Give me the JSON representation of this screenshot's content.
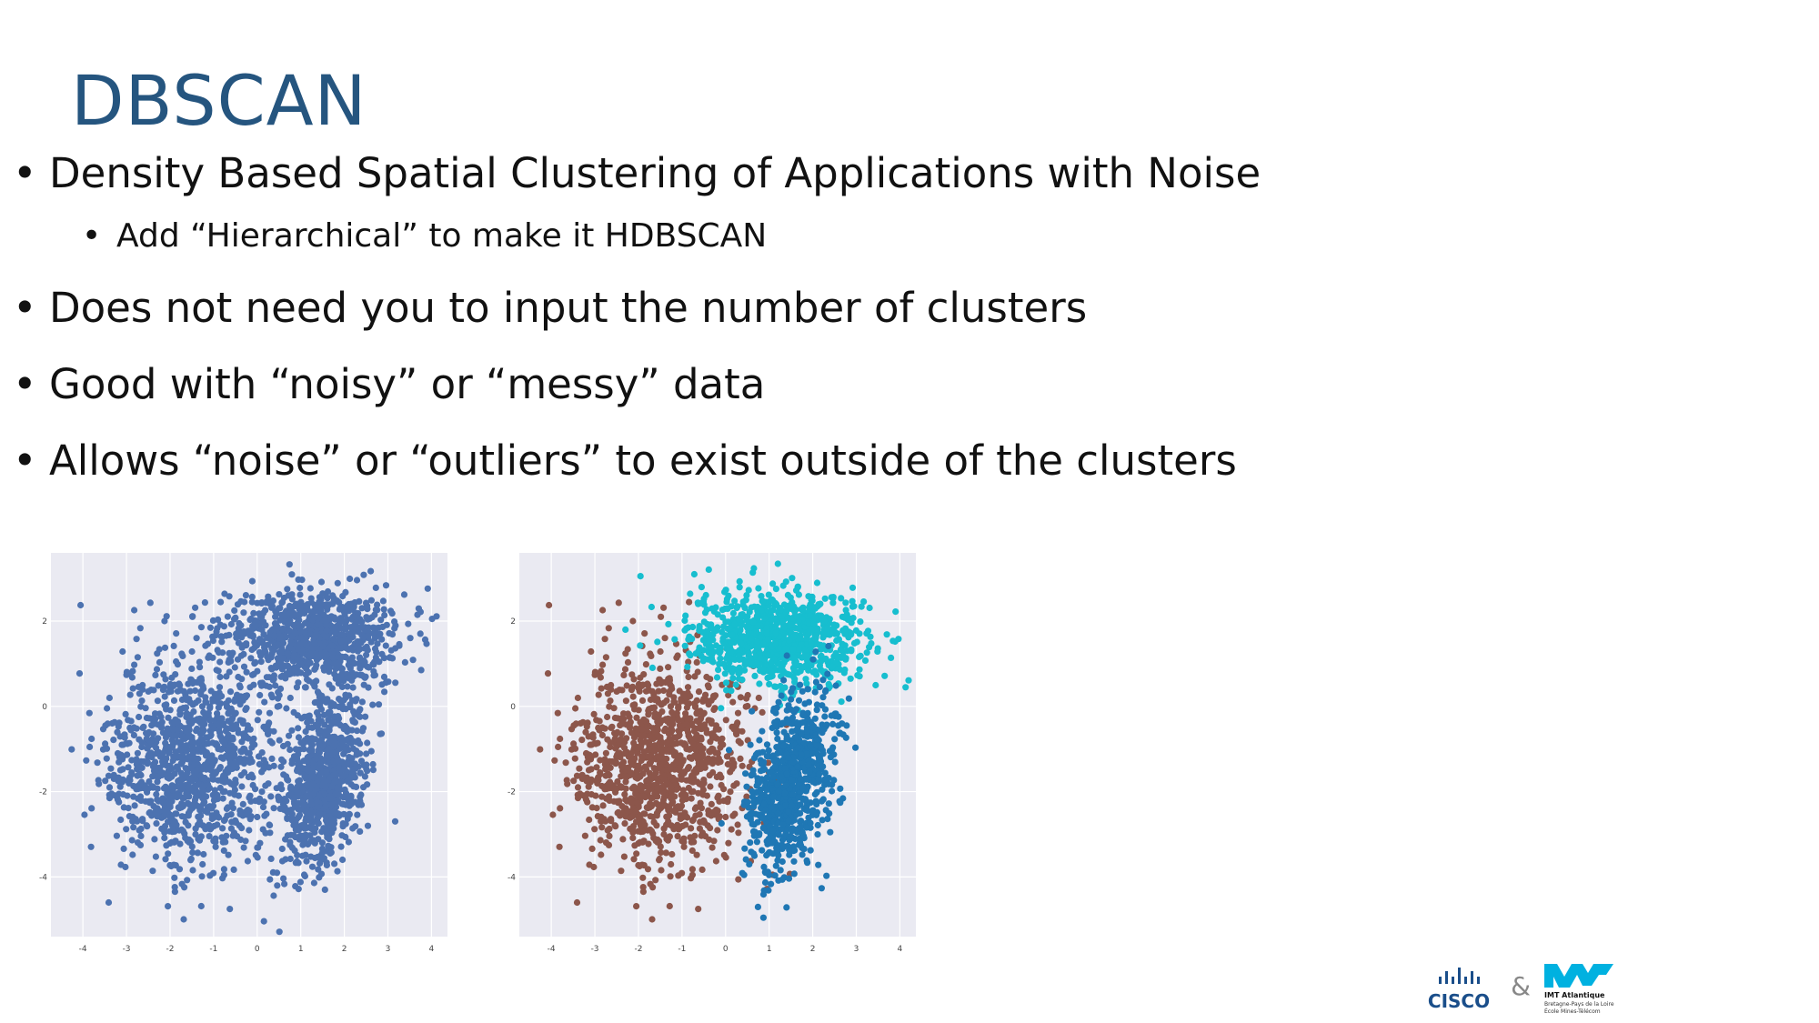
{
  "slide": {
    "title": "DBSCAN",
    "bullets": [
      {
        "level": 1,
        "text": "Density Based Spatial Clustering of Applications with Noise"
      },
      {
        "level": 2,
        "text": "Add “Hierarchical” to make it HDBSCAN"
      },
      {
        "level": 1,
        "text": "Does not need you to input the number of clusters"
      },
      {
        "level": 1,
        "text": "Good with “noisy” or “messy” data"
      },
      {
        "level": 1,
        "text": "Allows “noise” or “outliers” to exist outside of the clusters"
      }
    ]
  },
  "chart_data": [
    {
      "type": "scatter",
      "title": "",
      "xlabel": "",
      "ylabel": "",
      "xlim": [
        -4.4,
        4.2
      ],
      "ylim": [
        -5.4,
        3.6
      ],
      "xticks": [
        "-4",
        "-3",
        "-2",
        "-1",
        "0",
        "1",
        "2",
        "3",
        "4"
      ],
      "yticks": [
        "2",
        "0",
        "-2",
        "-4"
      ],
      "grid": true,
      "background": "#eaeaf2",
      "series": [
        {
          "color": "#4c72b0",
          "clusters": [
            {
              "center": [
                -1.5,
                -1.3
              ],
              "spread": [
                1.0,
                1.2
              ],
              "count": 1100,
              "rotation_deg": -10
            },
            {
              "center": [
                1.2,
                1.6
              ],
              "spread": [
                1.0,
                0.55
              ],
              "count": 900,
              "rotation_deg": 0
            },
            {
              "center": [
                1.5,
                -1.8
              ],
              "spread": [
                0.45,
                1.05
              ],
              "count": 800,
              "rotation_deg": -15
            }
          ]
        }
      ]
    },
    {
      "type": "scatter",
      "title": "",
      "xlabel": "",
      "ylabel": "",
      "xlim": [
        -4.4,
        4.2
      ],
      "ylim": [
        -5.4,
        3.6
      ],
      "xticks": [
        "-4",
        "-3",
        "-2",
        "-1",
        "0",
        "1",
        "2",
        "3",
        "4"
      ],
      "yticks": [
        "2",
        "0",
        "-2",
        "-4"
      ],
      "grid": true,
      "background": "#eaeaf2",
      "series": [
        {
          "color": "#8c564b",
          "clusters": [
            {
              "center": [
                -1.5,
                -1.3
              ],
              "spread": [
                1.0,
                1.2
              ],
              "count": 1100,
              "rotation_deg": -10
            }
          ]
        },
        {
          "color": "#17becf",
          "clusters": [
            {
              "center": [
                1.2,
                1.6
              ],
              "spread": [
                1.0,
                0.55
              ],
              "count": 900,
              "rotation_deg": 0
            }
          ]
        },
        {
          "color": "#1f77b4",
          "clusters": [
            {
              "center": [
                1.5,
                -1.8
              ],
              "spread": [
                0.45,
                1.05
              ],
              "count": 800,
              "rotation_deg": -15
            }
          ]
        }
      ]
    }
  ],
  "footer": {
    "cisco_label": "CISCO",
    "ampersand": "&",
    "imt_name": "IMT Atlantique",
    "imt_line2": "Bretagne-Pays de la Loire",
    "imt_line3": "École Mines-Télécom",
    "cisco_color": "#1a4e8a",
    "imt_color": "#00b1e0"
  }
}
